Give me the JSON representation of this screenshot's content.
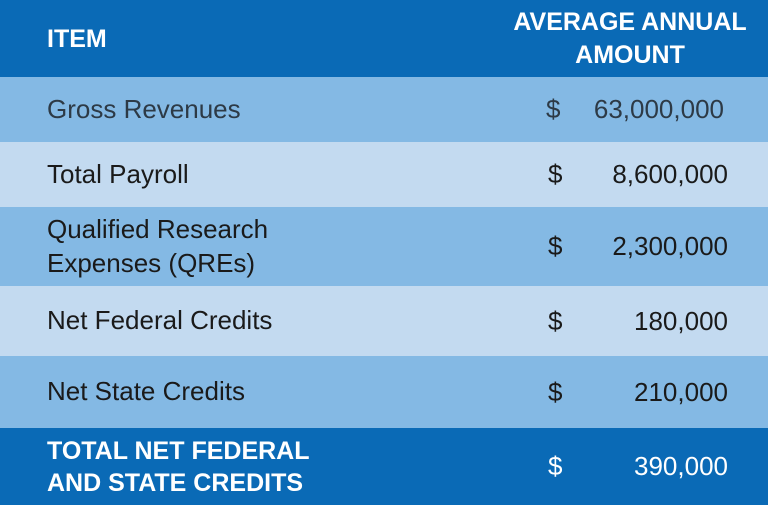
{
  "header": {
    "item_label": "ITEM",
    "amount_line1": "AVERAGE ANNUAL",
    "amount_line2": "AMOUNT"
  },
  "rows": [
    {
      "item_line1": "Gross Revenues",
      "item_line2": "",
      "currency": "$",
      "amount": "63,000,000"
    },
    {
      "item_line1": "Total Payroll",
      "item_line2": "",
      "currency": "$",
      "amount": "8,600,000"
    },
    {
      "item_line1": "Qualified Research",
      "item_line2": "Expenses (QREs)",
      "currency": "$",
      "amount": "2,300,000"
    },
    {
      "item_line1": "Net Federal Credits",
      "item_line2": "",
      "currency": "$",
      "amount": "180,000"
    },
    {
      "item_line1": "Net State Credits",
      "item_line2": "",
      "currency": "$",
      "amount": "210,000"
    }
  ],
  "total": {
    "item_line1": "TOTAL NET FEDERAL",
    "item_line2": "AND STATE CREDITS",
    "currency": "$",
    "amount": "390,000"
  },
  "colors": {
    "header_blue": "#0a6ab6",
    "row_mid_blue": "#84b9e4",
    "row_light_blue": "#c3daf0"
  }
}
